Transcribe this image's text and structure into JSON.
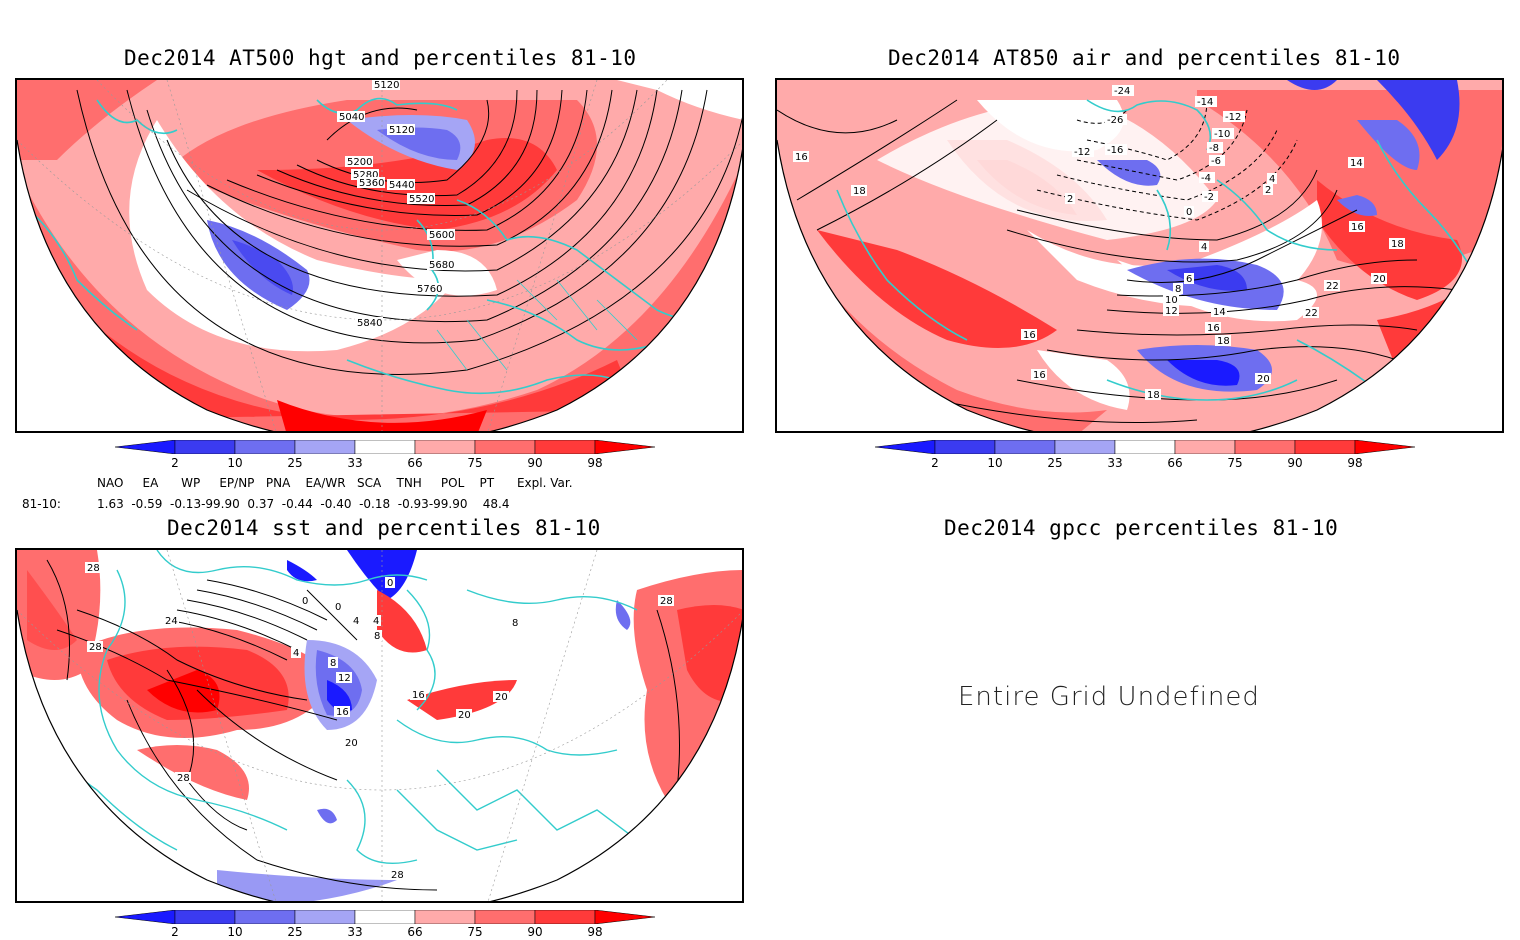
{
  "panels": {
    "hgt": {
      "title": "Dec2014 AT500 hgt and percentiles 81-10",
      "contour_labels": [
        "5120",
        "5040",
        "5120",
        "5200",
        "5280",
        "5360",
        "5440",
        "5520",
        "5600",
        "5680",
        "5760",
        "5840"
      ]
    },
    "air": {
      "title": "Dec2014 AT850 air and percentiles 81-10",
      "contour_labels": [
        "-24",
        "-26",
        "-14",
        "-12",
        "-10",
        "-8",
        "-6",
        "-4",
        "-2",
        "0",
        "2",
        "4",
        "2",
        "-12",
        "-16",
        "16",
        "18",
        "14",
        "16",
        "18",
        "20",
        "22",
        "22",
        "4",
        "6",
        "8",
        "10",
        "12",
        "14",
        "16",
        "18",
        "20",
        "16",
        "16",
        "18"
      ]
    },
    "sst": {
      "title": "Dec2014 sst and percentiles 81-10",
      "contour_labels": [
        "28",
        "24",
        "28",
        "0",
        "0",
        "0",
        "4",
        "4",
        "8",
        "4",
        "8",
        "12",
        "16",
        "16",
        "20",
        "20",
        "20",
        "28",
        "28",
        "8",
        "28"
      ]
    },
    "gpcc": {
      "title": "Dec2014 gpcc percentiles 81-10",
      "message": "Entire Grid Undefined"
    }
  },
  "colorbar": {
    "labels": [
      "2",
      "10",
      "25",
      "33",
      "66",
      "75",
      "90",
      "98"
    ],
    "colors": [
      "#1a1aff",
      "#3b3bf0",
      "#6e6ef0",
      "#a5a5f5",
      "#ffffff",
      "#ffaaaa",
      "#ff6e6e",
      "#ff3a3a",
      "#ff0000"
    ]
  },
  "indices": {
    "headers": "NAO     EA      WP     EP/NP   PNA    EA/WR   SCA    TNH     POL    PT      Expl. Var.",
    "row_label": "81-10:",
    "values": "1.63  -0.59  -0.13-99.90  0.37  -0.44  -0.40  -0.18  -0.93-99.90    48.4"
  },
  "colors": {
    "coast": "#33cccc",
    "warm_light": "#ffaaaa",
    "warm_mid": "#ff6e6e",
    "warm_strong": "#ff3a3a",
    "warm_max": "#ff0000",
    "cold_light": "#a5a5f5",
    "cold_mid": "#6e6ef0",
    "cold_strong": "#3b3bf0",
    "cold_max": "#1a1aff"
  }
}
